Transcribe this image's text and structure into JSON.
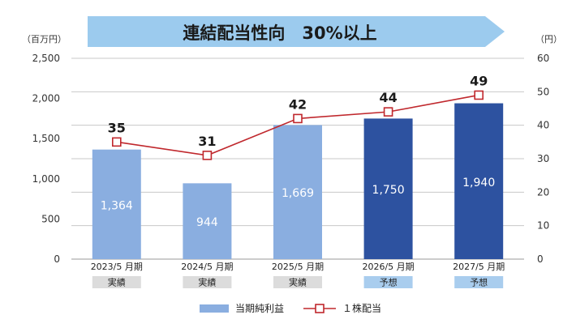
{
  "chart_data": {
    "type": "bar",
    "title": "連結配当性向　30%以上",
    "categories": [
      "2023/5 月期",
      "2024/5 月期",
      "2025/5 月期",
      "2026/5 月期",
      "2027/5 月期"
    ],
    "category_tags": [
      "実績",
      "実績",
      "実績",
      "予想",
      "予想"
    ],
    "ylim_left": [
      0,
      2500
    ],
    "ylim_right": [
      0,
      60
    ],
    "left_ticks": [
      "0",
      "500",
      "1,000",
      "1,500",
      "2,000",
      "2,500"
    ],
    "right_ticks": [
      "0",
      "10",
      "20",
      "30",
      "40",
      "50",
      "60"
    ],
    "left_unit": "（百万円）",
    "right_unit": "（円）",
    "grid": true,
    "legend_position": "bottom",
    "series": [
      {
        "name": "当期純利益",
        "type": "bar",
        "axis": "left",
        "values": [
          1364,
          944,
          1669,
          1750,
          1940
        ],
        "labels": [
          "1,364",
          "944",
          "1,669",
          "1,750",
          "1,940"
        ]
      },
      {
        "name": "１株配当",
        "type": "line",
        "axis": "right",
        "values": [
          35,
          31,
          42,
          44,
          49
        ],
        "labels": [
          "35",
          "31",
          "42",
          "44",
          "49"
        ]
      }
    ],
    "colors": {
      "actual_bar": "#8aaee0",
      "forecast_bar": "#2d52a0",
      "line": "#c0282d",
      "banner": "#9ccbee",
      "actual_tag": "#dcdcdc",
      "forecast_tag": "#a9cdee",
      "grid": "#c8c8c8"
    }
  }
}
